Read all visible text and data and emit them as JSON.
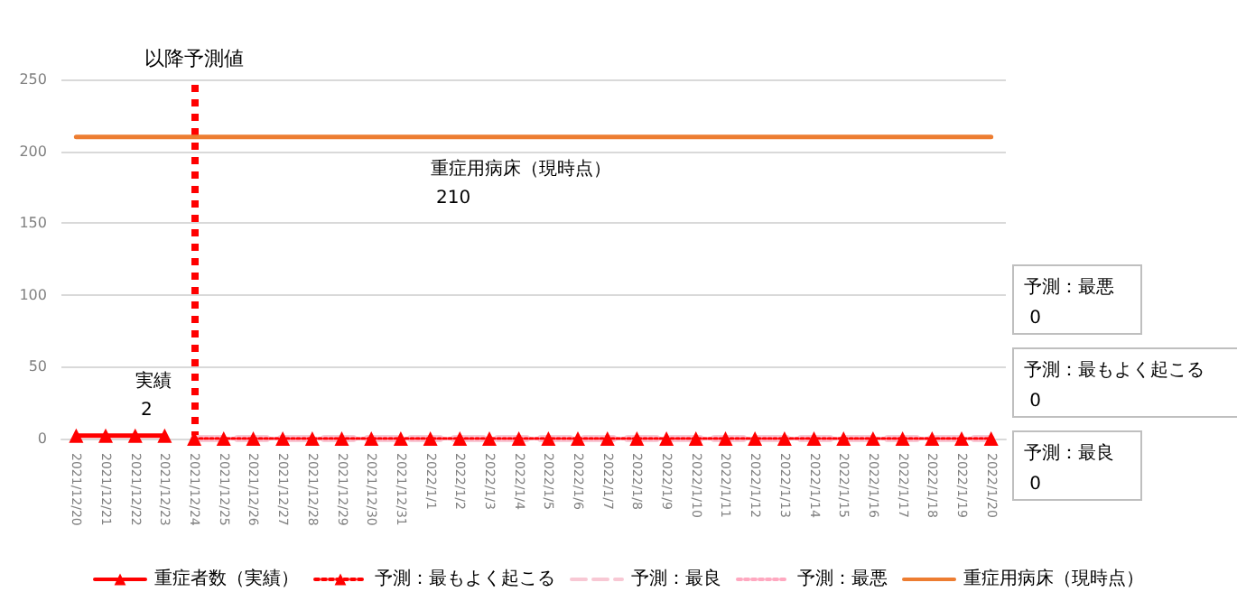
{
  "chart_data": {
    "type": "line",
    "categories": [
      "2021/12/20",
      "2021/12/21",
      "2021/12/22",
      "2021/12/23",
      "2021/12/24",
      "2021/12/25",
      "2021/12/26",
      "2021/12/27",
      "2021/12/28",
      "2021/12/29",
      "2021/12/30",
      "2021/12/31",
      "2022/1/1",
      "2022/1/2",
      "2022/1/3",
      "2022/1/4",
      "2022/1/5",
      "2022/1/6",
      "2022/1/7",
      "2022/1/8",
      "2022/1/9",
      "2022/1/10",
      "2022/1/11",
      "2022/1/12",
      "2022/1/13",
      "2022/1/14",
      "2022/1/15",
      "2022/1/16",
      "2022/1/17",
      "2022/1/18",
      "2022/1/19",
      "2022/1/20"
    ],
    "series": [
      {
        "name": "重症者数（実績）",
        "color": "#ff0000",
        "marker": "triangle",
        "line_style": "solid",
        "values": [
          2,
          2,
          2,
          2,
          null,
          null,
          null,
          null,
          null,
          null,
          null,
          null,
          null,
          null,
          null,
          null,
          null,
          null,
          null,
          null,
          null,
          null,
          null,
          null,
          null,
          null,
          null,
          null,
          null,
          null,
          null,
          null
        ]
      },
      {
        "name": "予測：最もよく起こる",
        "color": "#ff0000",
        "marker": "triangle",
        "line_style": "dotted",
        "values": [
          null,
          null,
          null,
          null,
          0,
          0,
          0,
          0,
          0,
          0,
          0,
          0,
          0,
          0,
          0,
          0,
          0,
          0,
          0,
          0,
          0,
          0,
          0,
          0,
          0,
          0,
          0,
          0,
          0,
          0,
          0,
          0
        ]
      },
      {
        "name": "予測：最良",
        "color": "#f8c8d4",
        "marker": "none",
        "line_style": "dashed",
        "values": [
          null,
          null,
          null,
          null,
          0,
          0,
          0,
          0,
          0,
          0,
          0,
          0,
          0,
          0,
          0,
          0,
          0,
          0,
          0,
          0,
          0,
          0,
          0,
          0,
          0,
          0,
          0,
          0,
          0,
          0,
          0,
          0
        ]
      },
      {
        "name": "予測：最悪",
        "color": "#ffa8c0",
        "marker": "none",
        "line_style": "dotted",
        "values": [
          null,
          null,
          null,
          null,
          0,
          0,
          0,
          0,
          0,
          0,
          0,
          0,
          0,
          0,
          0,
          0,
          0,
          0,
          0,
          0,
          0,
          0,
          0,
          0,
          0,
          0,
          0,
          0,
          0,
          0,
          0,
          0
        ]
      },
      {
        "name": "重症用病床（現時点）",
        "color": "#ed7d31",
        "marker": "none",
        "line_style": "solid",
        "values": [
          210,
          210,
          210,
          210,
          210,
          210,
          210,
          210,
          210,
          210,
          210,
          210,
          210,
          210,
          210,
          210,
          210,
          210,
          210,
          210,
          210,
          210,
          210,
          210,
          210,
          210,
          210,
          210,
          210,
          210,
          210,
          210
        ]
      }
    ],
    "ylim": [
      0,
      250
    ],
    "yticks": [
      0,
      50,
      100,
      150,
      200,
      250
    ],
    "grid": "y",
    "legend": "bottom",
    "ref_lines": [
      {
        "axis": "x",
        "value": "2021/12/24",
        "label": "以降予測値",
        "color": "#ff0000",
        "line_style": "dotted"
      }
    ],
    "annotations": [
      {
        "text": "実績\n2",
        "x": "2021/12/22",
        "y": 2
      },
      {
        "text": "重症用病床（現時点）\n210",
        "x": "2022/1/1",
        "y": 210
      },
      "予測：最悪\n0",
      "予測：最もよく起こる\n0",
      "予測：最良\n0"
    ]
  }
}
